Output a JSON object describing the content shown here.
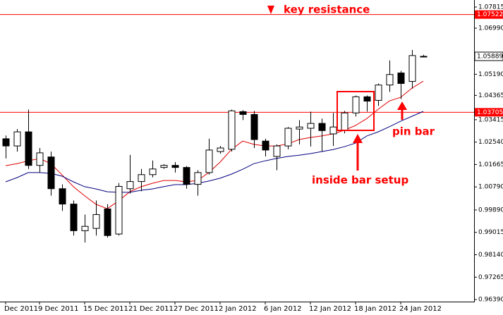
{
  "chart_data": {
    "type": "candlestick",
    "categories": [
      "Dec 2011",
      null,
      null,
      "9 Dec 2011",
      null,
      null,
      null,
      "15 Dec 2011",
      null,
      null,
      null,
      "21 Dec 2011",
      null,
      null,
      null,
      "27 Dec 2011",
      null,
      null,
      null,
      "2 Jan 2012",
      null,
      null,
      null,
      "6 Jan 2012",
      null,
      null,
      null,
      "12 Jan 2012",
      null,
      null,
      null,
      "18 Jan 2012",
      null,
      null,
      null,
      "24 Jan 2012",
      null,
      null
    ],
    "open": [
      1.0267,
      1.0239,
      1.0294,
      1.0163,
      1.0196,
      1.0072,
      1.0012,
      0.9908,
      0.9917,
      0.9993,
      0.9895,
      1.0072,
      1.01,
      1.0127,
      1.0155,
      1.0163,
      1.0155,
      1.0089,
      1.0135,
      1.0217,
      1.0226,
      1.0373,
      1.0362,
      1.0258,
      1.0198,
      1.0239,
      1.0305,
      1.0308,
      1.0327,
      1.0286,
      1.0299,
      1.0368,
      1.0431,
      1.0417,
      1.0477,
      1.0524,
      1.0491,
      1.0588
    ],
    "high": [
      1.028,
      1.0305,
      1.0381,
      1.0231,
      1.0217,
      1.0089,
      1.0026,
      0.9971,
      1.0026,
      1.0012,
      1.0094,
      1.0204,
      1.0149,
      1.0182,
      1.0168,
      1.0176,
      1.016,
      1.0144,
      1.0267,
      1.0239,
      1.0381,
      1.0379,
      1.0376,
      1.0267,
      1.0245,
      1.0313,
      1.034,
      1.0373,
      1.0346,
      1.0368,
      1.0376,
      1.0436,
      1.0436,
      1.0483,
      1.0573,
      1.0532,
      1.0614,
      1.0595
    ],
    "low": [
      1.019,
      1.0217,
      1.0149,
      1.0135,
      1.0045,
      0.9985,
      0.9889,
      0.9862,
      0.9889,
      0.9881,
      0.9889,
      1.0053,
      1.0062,
      1.0116,
      1.0149,
      1.0135,
      1.0072,
      1.0045,
      1.0127,
      1.0209,
      1.0217,
      1.034,
      1.0231,
      1.0198,
      1.0144,
      1.0226,
      1.0245,
      1.0237,
      1.0217,
      1.0239,
      1.0288,
      1.0354,
      1.0373,
      1.0395,
      1.045,
      1.0422,
      1.0463,
      1.0586
    ],
    "close": [
      1.0239,
      1.0294,
      1.0163,
      1.0212,
      1.0072,
      1.0012,
      0.9908,
      0.9925,
      0.9971,
      0.9889,
      1.0081,
      1.01,
      1.0127,
      1.0149,
      1.0163,
      1.0155,
      1.0089,
      1.0135,
      1.0223,
      1.0231,
      1.0376,
      1.0362,
      1.0264,
      1.0223,
      1.0239,
      1.0308,
      1.0313,
      1.0327,
      1.0299,
      1.0313,
      1.0368,
      1.0431,
      1.0414,
      1.0477,
      1.0518,
      1.0483,
      1.0592,
      1.0589
    ],
    "up_color": "#ffffff",
    "down_color": "#000000",
    "moving_averages": [
      {
        "color": "#e00000",
        "values": [
          1.0162,
          1.017,
          1.0181,
          1.019,
          1.017,
          1.0126,
          1.008,
          1.0044,
          1.0011,
          0.9994,
          1.0024,
          1.006,
          1.008,
          1.0093,
          1.0104,
          1.0104,
          1.0099,
          1.0104,
          1.0135,
          1.0176,
          1.0225,
          1.0258,
          1.0245,
          1.0239,
          1.0239,
          1.0247,
          1.0264,
          1.0272,
          1.0278,
          1.0286,
          1.03,
          1.0319,
          1.0346,
          1.0382,
          1.0415,
          1.0429,
          1.0465,
          1.0492
        ]
      },
      {
        "color": "#000080",
        "values": [
          1.0099,
          1.0115,
          1.0135,
          1.0135,
          1.0132,
          1.0121,
          1.0099,
          1.008,
          1.0071,
          1.006,
          1.0058,
          1.0058,
          1.0066,
          1.0071,
          1.008,
          1.0088,
          1.0088,
          1.0093,
          1.0102,
          1.0113,
          1.0129,
          1.0148,
          1.017,
          1.0181,
          1.019,
          1.0198,
          1.0203,
          1.0209,
          1.0217,
          1.0225,
          1.0236,
          1.025,
          1.0278,
          1.0294,
          1.0314,
          1.0336,
          1.0355,
          1.0374
        ]
      }
    ],
    "levels": [
      {
        "value": 1.07522,
        "color": "#ff0000"
      },
      {
        "value": 1.03705,
        "color": "#ff0000"
      }
    ],
    "last_price": 1.05889,
    "ylim": [
      0.9631,
      1.0809
    ],
    "yticks": [
      1.07815,
      {
        "value": 1.0699,
        "label": "1.06990"
      },
      {
        "value": 1.0519,
        "label": "1.05190"
      },
      1.04365,
      1.03415,
      {
        "value": 1.0254,
        "label": "1.02540"
      },
      1.01665,
      {
        "value": 1.0079,
        "label": "1.00790"
      },
      {
        "value": 0.9989,
        "label": "0.99890"
      },
      0.99015,
      {
        "value": 0.9814,
        "label": "0.98140"
      },
      0.97265,
      {
        "value": 0.9639,
        "label": "0.96390"
      }
    ],
    "annotations": [
      "key resistance",
      "inside bar setup",
      "pin bar"
    ]
  }
}
